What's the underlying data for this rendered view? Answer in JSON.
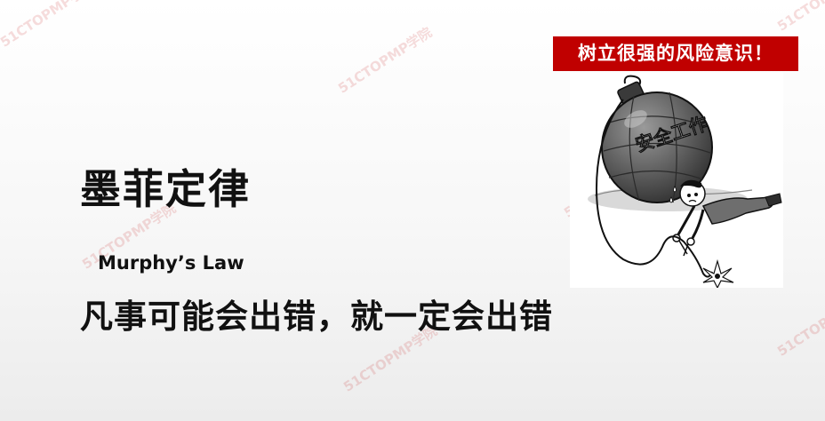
{
  "slide": {
    "title": "墨菲定律",
    "subtitle": "Murphy’s Law",
    "statement": "凡事可能会出错，就一定会出错",
    "banner": "树立很强的风险意识！"
  },
  "illustration": {
    "bomb_label": "安全工作"
  },
  "watermark": {
    "text": "51CTOPMP学院"
  },
  "colors": {
    "banner_bg": "#c00000",
    "banner_text": "#ffffff",
    "text": "#111111"
  }
}
